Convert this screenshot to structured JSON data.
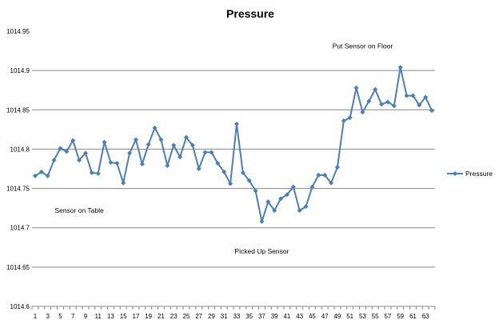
{
  "chart_data": {
    "type": "line",
    "title": "Pressure",
    "xlabel": "",
    "ylabel": "",
    "ylim": [
      1014.6,
      1014.95
    ],
    "y_ticks": [
      "1014.6",
      "1014.65",
      "1014.7",
      "1014.75",
      "1014.8",
      "1014.85",
      "1014.9",
      "1014.95"
    ],
    "x_tick_labels": [
      "1",
      "3",
      "5",
      "7",
      "9",
      "11",
      "13",
      "15",
      "17",
      "19",
      "21",
      "23",
      "25",
      "27",
      "29",
      "31",
      "33",
      "35",
      "37",
      "39",
      "41",
      "43",
      "45",
      "47",
      "49",
      "51",
      "53",
      "55",
      "57",
      "59",
      "61",
      "63"
    ],
    "grid": "horizontal",
    "legend_position": "right",
    "color": "#4a7ebb",
    "series": [
      {
        "name": "Pressure",
        "values": [
          1014.766,
          1014.771,
          1014.766,
          1014.786,
          1014.801,
          1014.797,
          1014.811,
          1014.786,
          1014.795,
          1014.77,
          1014.769,
          1014.809,
          1014.783,
          1014.782,
          1014.757,
          1014.795,
          1014.812,
          1014.781,
          1014.806,
          1014.827,
          1014.812,
          1014.779,
          1014.805,
          1014.79,
          1014.815,
          1014.805,
          1014.775,
          1014.796,
          1014.796,
          1014.782,
          1014.771,
          1014.756,
          1014.832,
          1014.77,
          1014.76,
          1014.747,
          1014.708,
          1014.733,
          1014.722,
          1014.737,
          1014.742,
          1014.752,
          1014.722,
          1014.727,
          1014.752,
          1014.767,
          1014.767,
          1014.757,
          1014.777,
          1014.836,
          1014.84,
          1014.878,
          1014.847,
          1014.861,
          1014.876,
          1014.857,
          1014.86,
          1014.855,
          1014.904,
          1014.868,
          1014.868,
          1014.856,
          1014.866,
          1014.849
        ]
      }
    ],
    "annotations": [
      {
        "text": "Sensor on Table",
        "x": 8,
        "y": 1014.719
      },
      {
        "text": "Picked Up Sensor",
        "x": 37,
        "y": 1014.667
      },
      {
        "text": "Put Sensor on Floor",
        "x": 53,
        "y": 1014.928
      }
    ]
  }
}
